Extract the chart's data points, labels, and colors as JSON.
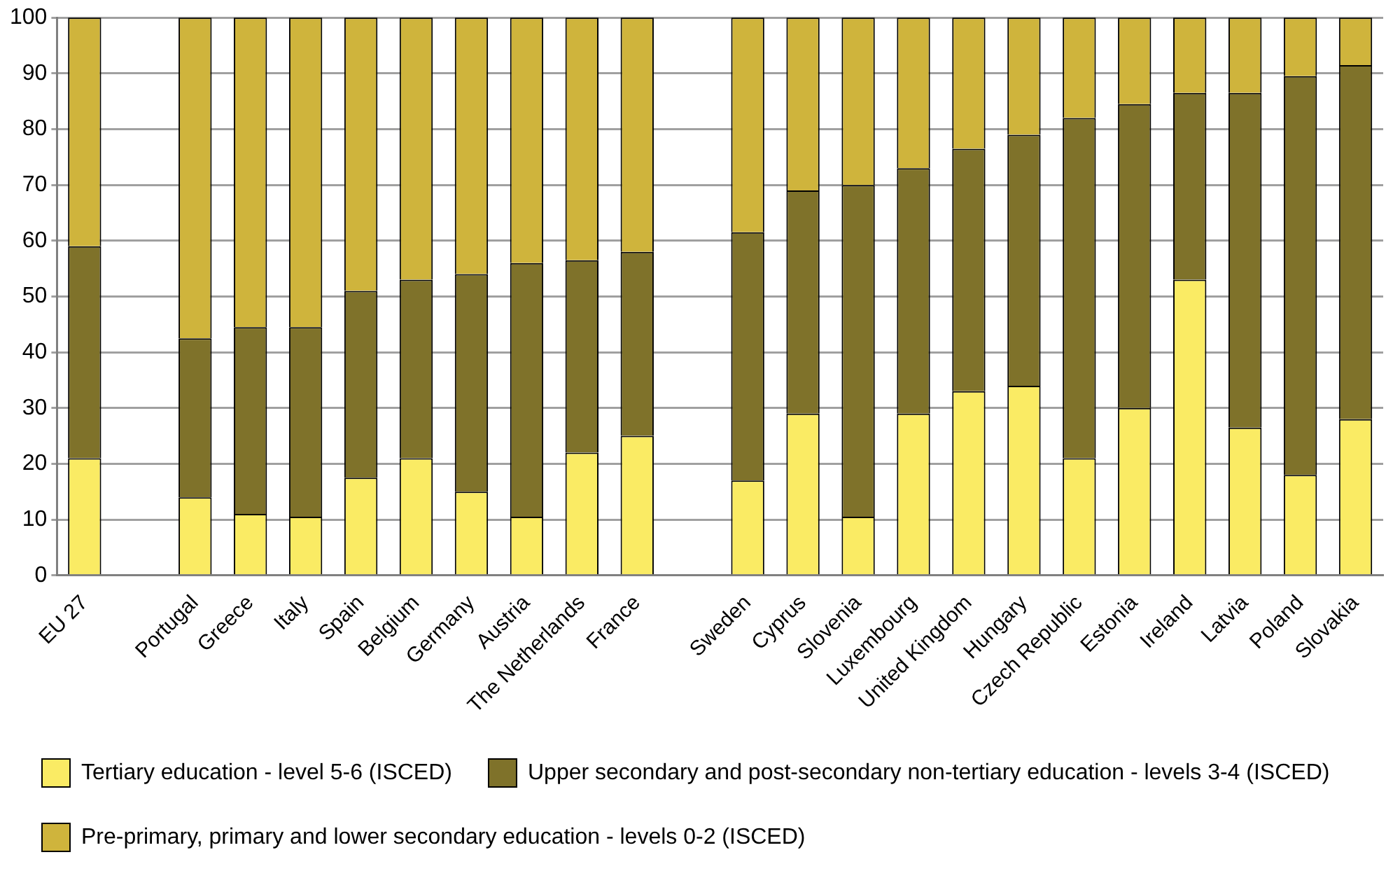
{
  "chart_data": {
    "type": "bar",
    "stacked": true,
    "categories": [
      "EU 27",
      null,
      "Portugal",
      "Greece",
      "Italy",
      "Spain",
      "Belgium",
      "Germany",
      "Austria",
      "The Netherlands",
      "France",
      null,
      "Sweden",
      "Cyprus",
      "Slovenia",
      "Luxembourg",
      "United Kingdom",
      "Hungary",
      "Czech Republic",
      "Estonia",
      "Ireland",
      "Latvia",
      "Poland",
      "Slovakia"
    ],
    "series": [
      {
        "name": "Tertiary education - level 5-6 (ISCED)",
        "color": "#faeb64",
        "values": [
          21,
          null,
          14,
          11,
          10.5,
          17.5,
          21,
          15,
          10.5,
          22,
          25,
          null,
          17,
          29,
          10.5,
          29,
          33,
          34,
          21,
          30,
          53,
          26.5,
          18,
          28
        ]
      },
      {
        "name": "Upper secondary and post-secondary non-tertiary education - levels 3-4 (ISCED)",
        "color": "#7f722a",
        "values": [
          38,
          null,
          28.5,
          33.5,
          34,
          33.5,
          32,
          39,
          45.5,
          34.5,
          33,
          null,
          44.5,
          40,
          59.5,
          44,
          43.5,
          45,
          61,
          54.5,
          33.5,
          60,
          71.5,
          63.5
        ]
      },
      {
        "name": "Pre-primary, primary and lower secondary education - levels 0-2 (ISCED)",
        "color": "#cfb43c",
        "values": [
          41,
          null,
          57.5,
          55.5,
          55.5,
          49,
          47,
          46,
          44,
          43.5,
          42,
          null,
          38.5,
          31,
          30,
          27,
          23.5,
          21,
          18,
          15.5,
          13.5,
          13.5,
          10.5,
          8.5
        ]
      }
    ],
    "ylim": [
      0,
      100
    ],
    "yticks": [
      0,
      10,
      20,
      30,
      40,
      50,
      60,
      70,
      80,
      90,
      100
    ],
    "grid": "y",
    "legend": "bottom left"
  }
}
